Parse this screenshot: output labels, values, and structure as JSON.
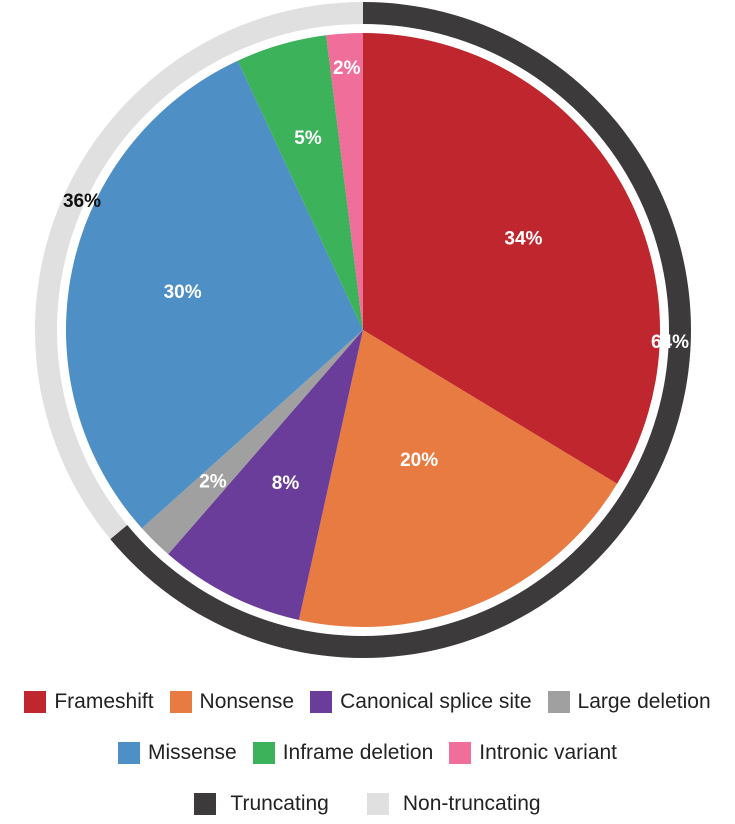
{
  "chart_data": {
    "type": "pie",
    "title": "",
    "slices": [
      {
        "name": "Frameshift",
        "value": 34,
        "label": "34%",
        "color": "#c0262e"
      },
      {
        "name": "Nonsense",
        "value": 20,
        "label": "20%",
        "color": "#e77b41"
      },
      {
        "name": "Canonical splice site",
        "value": 8,
        "label": "8%",
        "color": "#6a3d9a"
      },
      {
        "name": "Large deletion",
        "value": 2,
        "label": "2%",
        "color": "#a0a0a0"
      },
      {
        "name": "Missense",
        "value": 30,
        "label": "30%",
        "color": "#4e8fc5"
      },
      {
        "name": "Inframe deletion",
        "value": 5,
        "label": "5%",
        "color": "#3cb25b"
      },
      {
        "name": "Intronic variant",
        "value": 2,
        "label": "2%",
        "color": "#ef6f9a"
      }
    ],
    "outer_ring": [
      {
        "name": "Truncating",
        "value": 64,
        "label": "64%",
        "color": "#3c3a3b"
      },
      {
        "name": "Non-truncating",
        "value": 36,
        "label": "36%",
        "color": "#e0e0e0"
      }
    ]
  },
  "legend": {
    "row1": [
      {
        "label": "Frameshift",
        "color": "#c0262e"
      },
      {
        "label": "Nonsense",
        "color": "#e77b41"
      },
      {
        "label": "Canonical splice site",
        "color": "#6a3d9a"
      },
      {
        "label": "Large deletion",
        "color": "#a0a0a0"
      }
    ],
    "row2": [
      {
        "label": "Missense",
        "color": "#4e8fc5"
      },
      {
        "label": "Inframe deletion",
        "color": "#3cb25b"
      },
      {
        "label": "Intronic variant",
        "color": "#ef6f9a"
      }
    ],
    "row3": [
      {
        "label": "Truncating",
        "color": "#3c3a3b"
      },
      {
        "label": "Non-truncating",
        "color": "#e0e0e0"
      }
    ]
  }
}
